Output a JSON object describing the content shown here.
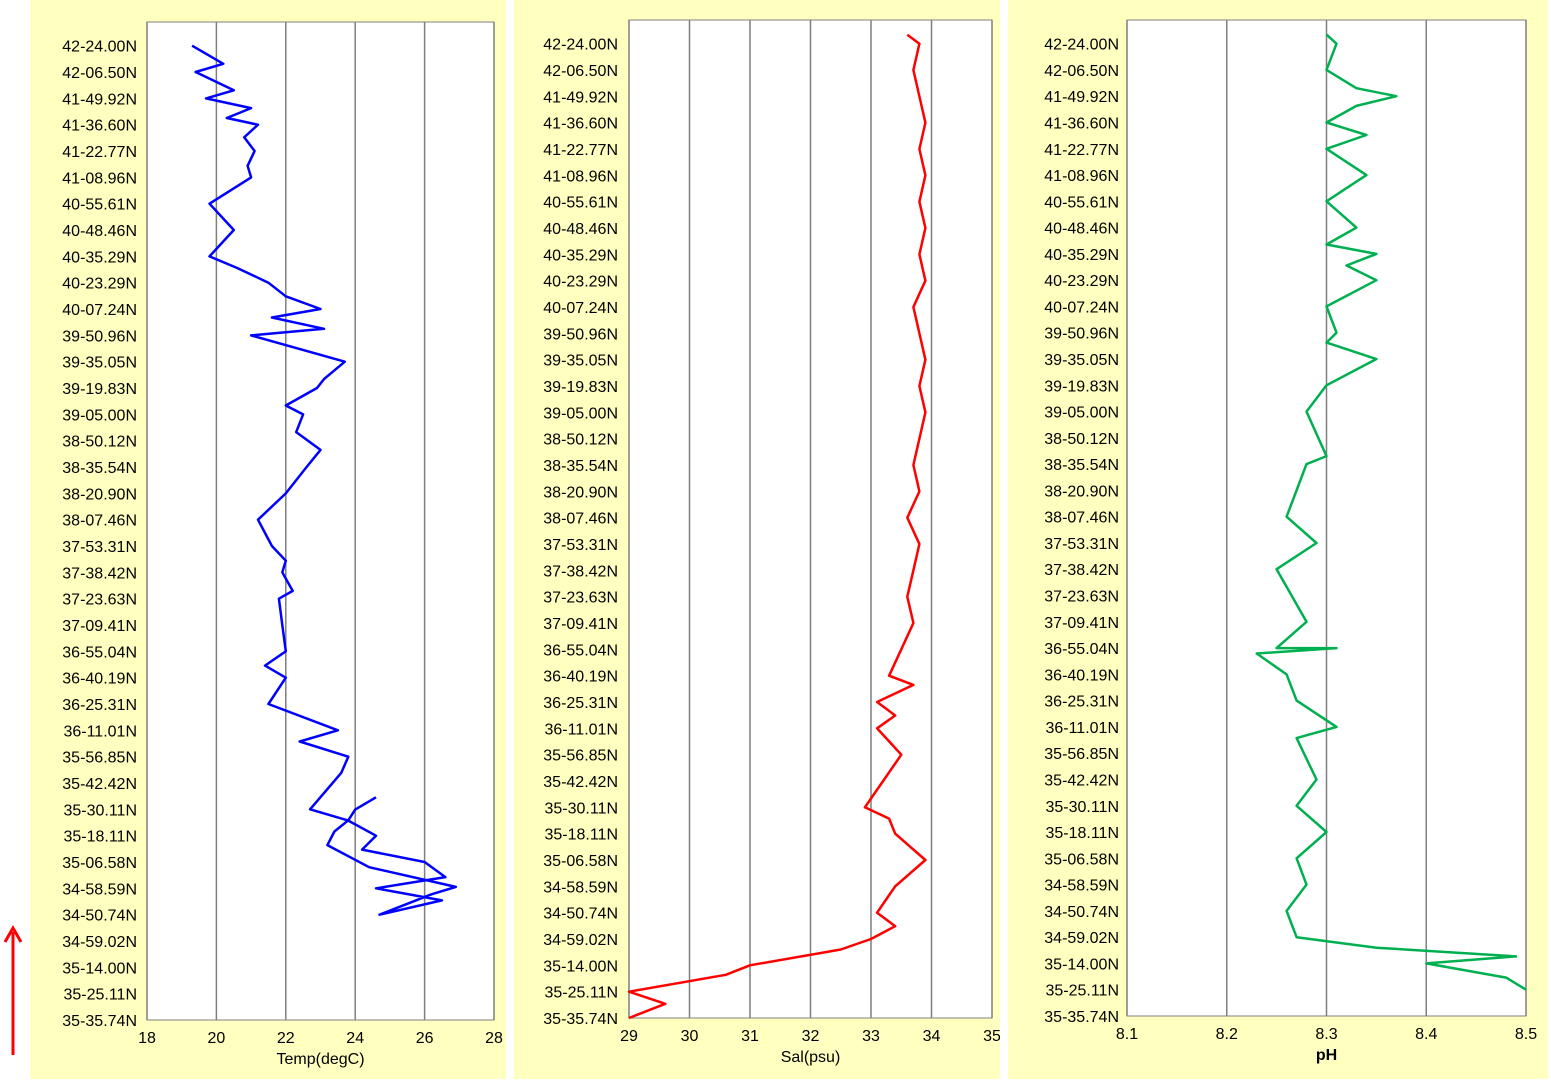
{
  "arrow_color": "#ff0000",
  "latitude_labels": [
    "42-24.00N",
    "42-06.50N",
    "41-49.92N",
    "41-36.60N",
    "41-22.77N",
    "41-08.96N",
    "40-55.61N",
    "40-48.46N",
    "40-35.29N",
    "40-23.29N",
    "40-07.24N",
    "39-50.96N",
    "39-35.05N",
    "39-19.83N",
    "39-05.00N",
    "38-50.12N",
    "38-35.54N",
    "38-20.90N",
    "38-07.46N",
    "37-53.31N",
    "37-38.42N",
    "37-23.63N",
    "37-09.41N",
    "36-55.04N",
    "36-40.19N",
    "36-25.31N",
    "36-11.01N",
    "35-56.85N",
    "35-42.42N",
    "35-30.11N",
    "35-18.11N",
    "35-06.58N",
    "34-58.59N",
    "34-50.74N",
    "34-59.02N",
    "35-14.00N",
    "35-25.11N",
    "35-35.74N"
  ],
  "chart_data": [
    {
      "type": "line",
      "xlabel": "Temp(degC)",
      "xlim": [
        18,
        28
      ],
      "xticks": [
        "18",
        "20",
        "22",
        "24",
        "26",
        "28"
      ],
      "grid": true,
      "color": "#0000ff",
      "x": [
        19.3,
        20.2,
        19.4,
        20.5,
        19.7,
        21.0,
        20.3,
        21.2,
        20.8,
        21.1,
        20.9,
        21.0,
        19.8,
        20.5,
        19.8,
        20.6,
        21.5,
        22.0,
        23.0,
        21.6,
        23.1,
        21.0,
        23.7,
        23.1,
        22.9,
        22.0,
        22.5,
        22.3,
        23.0,
        22.6,
        22.0,
        21.2,
        21.6,
        22.0,
        21.9,
        22.2,
        21.8,
        21.9,
        22.0,
        21.4,
        22.0,
        21.5,
        23.5,
        22.4,
        23.8,
        23.6,
        22.7,
        23.8,
        24.6,
        24.2,
        26.0,
        26.6,
        24.6,
        26.5,
        24.7,
        26.2,
        26.9,
        24.4,
        23.2,
        23.4,
        23.8,
        24.0,
        24.6
      ],
      "y": [
        "42-24.00N",
        "42-12.00N",
        "42-06.50N",
        "41-55.00N",
        "41-49.92N",
        "41-45.00N",
        "41-40.00N",
        "41-36.60N",
        "41-30.00N",
        "41-22.77N",
        "41-15.00N",
        "41-08.96N",
        "40-55.61N",
        "40-48.46N",
        "40-35.29N",
        "40-30.00N",
        "40-23.29N",
        "40-15.00N",
        "40-07.24N",
        "40-02.00N",
        "39-55.00N",
        "39-50.96N",
        "39-35.05N",
        "39-25.00N",
        "39-19.83N",
        "39-10.00N",
        "39-05.00N",
        "38-55.00N",
        "38-45.00N",
        "38-35.54N",
        "38-20.90N",
        "38-07.46N",
        "37-53.31N",
        "37-45.00N",
        "37-38.42N",
        "37-28.00N",
        "37-23.63N",
        "37-09.41N",
        "36-55.04N",
        "36-47.00N",
        "36-40.19N",
        "36-25.31N",
        "36-11.01N",
        "36-05.00N",
        "35-56.85N",
        "35-48.00N",
        "35-30.11N",
        "35-25.00N",
        "35-18.11N",
        "35-12.00N",
        "35-06.58N",
        "35-02.00N",
        "34-58.59N",
        "34-55.00N",
        "34-50.74N",
        "34-45.00N",
        "34-59.02N",
        "35-05.00N",
        "35-14.00N",
        "35-20.00N",
        "35-25.11N",
        "35-30.00N",
        "35-35.74N"
      ]
    },
    {
      "type": "line",
      "xlabel": "Sal(psu)",
      "xlim": [
        29,
        35
      ],
      "xticks": [
        "29",
        "30",
        "31",
        "32",
        "33",
        "34",
        "35"
      ],
      "grid": true,
      "color": "#ff0000",
      "x": [
        33.6,
        33.8,
        33.7,
        33.8,
        33.9,
        33.8,
        33.9,
        33.8,
        33.9,
        33.8,
        33.9,
        33.7,
        33.8,
        33.9,
        33.8,
        33.9,
        33.8,
        33.7,
        33.8,
        33.6,
        33.8,
        33.7,
        33.6,
        33.7,
        33.5,
        33.3,
        33.7,
        33.1,
        33.4,
        33.1,
        33.5,
        33.2,
        32.9,
        33.3,
        33.4,
        33.9,
        33.4,
        33.1,
        33.4,
        33.0,
        32.5,
        31.0,
        30.6,
        29.0,
        29.6,
        29.0
      ],
      "y": [
        "42-30.00N",
        "42-24.00N",
        "42-06.50N",
        "41-49.92N",
        "41-36.60N",
        "41-22.77N",
        "41-08.96N",
        "40-55.61N",
        "40-48.46N",
        "40-35.29N",
        "40-23.29N",
        "40-07.24N",
        "39-50.96N",
        "39-35.05N",
        "39-19.83N",
        "39-05.00N",
        "38-50.12N",
        "38-35.54N",
        "38-20.90N",
        "38-07.46N",
        "37-53.31N",
        "37-38.42N",
        "37-23.63N",
        "37-09.41N",
        "36-55.04N",
        "36-40.19N",
        "36-35.00N",
        "36-25.31N",
        "36-18.00N",
        "36-11.01N",
        "35-56.85N",
        "35-42.42N",
        "35-30.11N",
        "35-25.00N",
        "35-18.11N",
        "35-06.58N",
        "34-58.59N",
        "34-50.74N",
        "34-55.00N",
        "34-59.02N",
        "35-05.00N",
        "35-14.00N",
        "35-18.00N",
        "35-25.11N",
        "35-30.00N",
        "35-35.74N"
      ]
    },
    {
      "type": "line",
      "xlabel": "pH",
      "xlim": [
        8.1,
        8.5
      ],
      "xticks": [
        "8.1",
        "8.2",
        "8.3",
        "8.4",
        "8.5"
      ],
      "grid": true,
      "color": "#00b050",
      "x": [
        8.3,
        8.31,
        8.3,
        8.33,
        8.37,
        8.33,
        8.3,
        8.34,
        8.3,
        8.34,
        8.3,
        8.33,
        8.3,
        8.35,
        8.32,
        8.35,
        8.3,
        8.31,
        8.3,
        8.35,
        8.3,
        8.28,
        8.3,
        8.28,
        8.26,
        8.29,
        8.25,
        8.28,
        8.25,
        8.31,
        8.23,
        8.26,
        8.27,
        8.31,
        8.27,
        8.29,
        8.27,
        8.3,
        8.27,
        8.28,
        8.26,
        8.27,
        8.35,
        8.49,
        8.4,
        8.48,
        8.5
      ],
      "y": [
        "42-30.00N",
        "42-24.00N",
        "42-06.50N",
        "41-55.00N",
        "41-49.92N",
        "41-45.00N",
        "41-36.60N",
        "41-30.00N",
        "41-22.77N",
        "41-08.96N",
        "40-55.61N",
        "40-48.46N",
        "40-40.00N",
        "40-35.29N",
        "40-30.00N",
        "40-23.29N",
        "40-07.24N",
        "39-50.96N",
        "39-45.00N",
        "39-35.05N",
        "39-19.83N",
        "39-05.00N",
        "38-40.00N",
        "38-35.54N",
        "38-07.46N",
        "37-53.31N",
        "37-38.42N",
        "37-09.41N",
        "36-55.04N",
        "36-55.04N",
        "36-52.00N",
        "36-40.19N",
        "36-25.31N",
        "36-11.01N",
        "36-05.00N",
        "35-42.42N",
        "35-30.11N",
        "35-18.11N",
        "35-06.58N",
        "34-58.59N",
        "34-50.74N",
        "34-59.02N",
        "35-05.00N",
        "35-10.00N",
        "35-14.00N",
        "35-20.00N",
        "35-25.11N"
      ]
    }
  ]
}
